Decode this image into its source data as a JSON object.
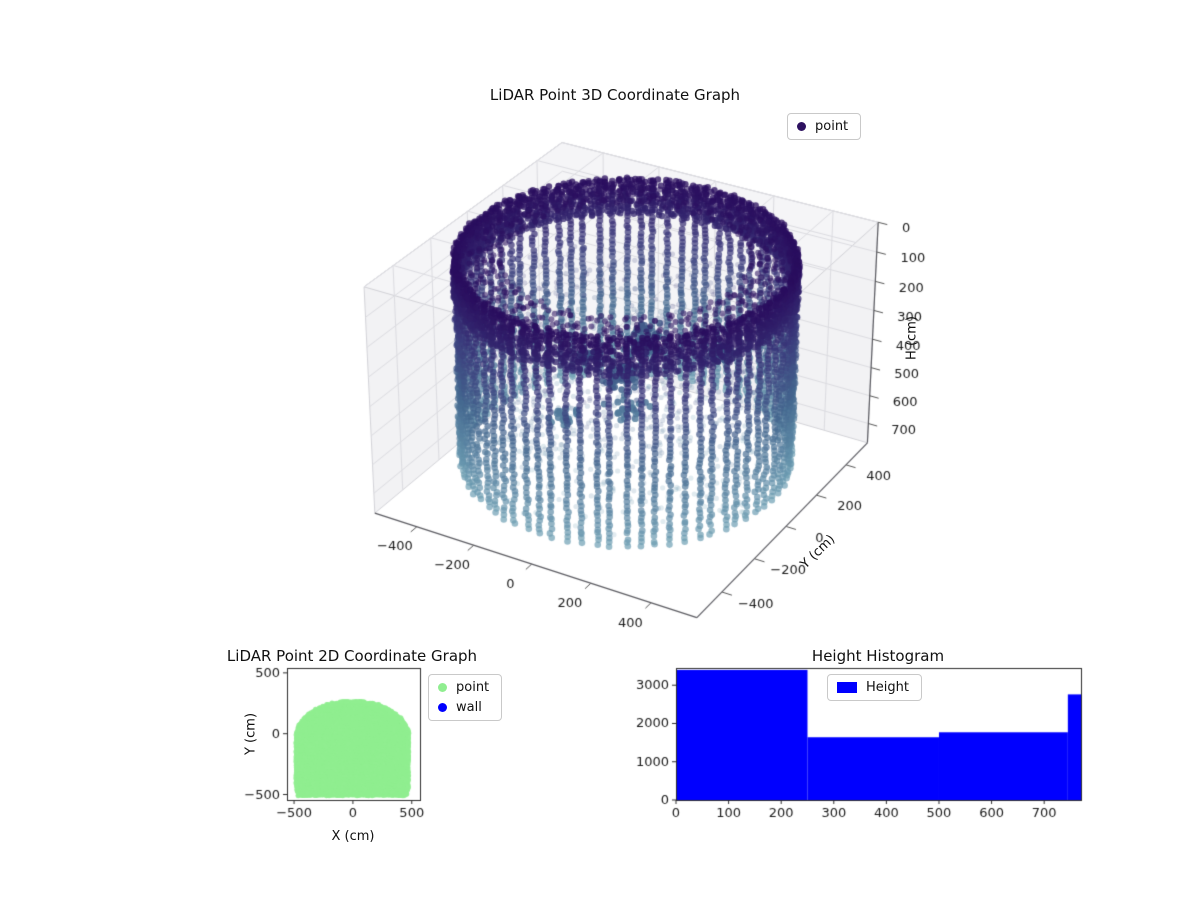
{
  "figure_background": "#ffffff",
  "chart_data": [
    {
      "id": "lidar-3d-scatter",
      "type": "scatter",
      "projection": "3d",
      "title": "LiDAR Point 3D Coordinate Graph",
      "ylabel": "Y (cm)",
      "zlabel": "H (cm)",
      "xlim": [
        -550,
        550
      ],
      "ylim": [
        -550,
        550
      ],
      "hlim": [
        0,
        770
      ],
      "h_axis_inverted": true,
      "xticks": [
        -400,
        -200,
        0,
        200,
        400
      ],
      "yticks": [
        -400,
        -200,
        0,
        200,
        400
      ],
      "hticks": [
        0,
        100,
        200,
        300,
        400,
        500,
        600,
        700
      ],
      "legend": [
        {
          "label": "point",
          "color": "#2d1160"
        }
      ],
      "view": {
        "azim_deg": -60,
        "elev_deg": 30
      },
      "colormap": {
        "name": "viridis-dark-to-steelblue",
        "stops": [
          [
            0,
            "#2a0d5e"
          ],
          [
            0.3,
            "#3b3a7c"
          ],
          [
            0.6,
            "#44678f"
          ],
          [
            1,
            "#6fa0b4"
          ]
        ]
      },
      "point_cloud": {
        "shape": "cylinder",
        "radius_cm": 500,
        "height_cm": 700,
        "wall_columns": 72,
        "column_step_cm": 14,
        "rim_depth_cm": 120,
        "rim_angles": 150,
        "cap_ring_min_r": 370,
        "interior_points": 900,
        "interior_clusters": 8,
        "seed": 42
      }
    },
    {
      "id": "lidar-2d-scatter",
      "type": "scatter",
      "title": "LiDAR Point 2D Coordinate Graph",
      "xlabel": "X (cm)",
      "ylabel": "Y (cm)",
      "xlim": [
        -560,
        570
      ],
      "ylim": [
        -545,
        540
      ],
      "xticks": [
        -500,
        0,
        500
      ],
      "yticks": [
        -500,
        0,
        500
      ],
      "legend": [
        {
          "label": "point",
          "color": "#90ee90"
        },
        {
          "label": "wall",
          "color": "#0000ff"
        }
      ],
      "region": {
        "description": "dense dome-shaped blob of points, flat bottom",
        "color": "#90ee90",
        "halfwidth_cm": 480,
        "bottom_y_cm": -505,
        "cap_center_y_cm": -30,
        "cap_ry_cm": 300,
        "grid_step_cm": 13,
        "seed": 7
      }
    },
    {
      "id": "height-histogram",
      "type": "bar",
      "title": "Height Histogram",
      "legend": [
        {
          "label": "Height",
          "color": "#0000ff"
        }
      ],
      "bar_color": "#0000ff",
      "bin_edges": [
        0,
        250,
        500,
        745,
        770
      ],
      "counts": [
        3400,
        1640,
        1770,
        2760
      ],
      "xlim": [
        0,
        770
      ],
      "ylim": [
        0,
        3450
      ],
      "xticks": [
        0,
        100,
        200,
        300,
        400,
        500,
        600,
        700
      ],
      "yticks": [
        0,
        1000,
        2000,
        3000
      ]
    }
  ]
}
